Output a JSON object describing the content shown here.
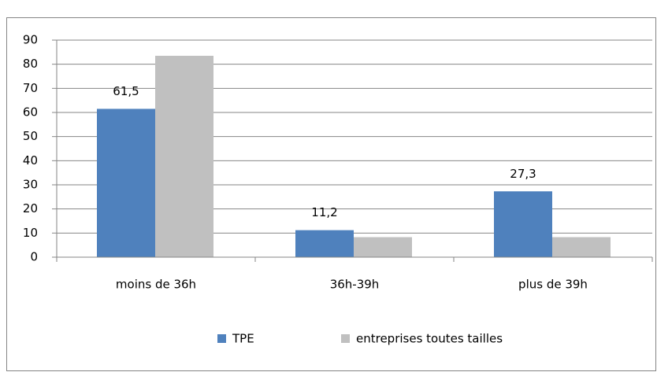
{
  "chart_data": {
    "type": "bar",
    "categories": [
      "moins de 36h",
      "36h-39h",
      "plus de 39h"
    ],
    "series": [
      {
        "name": "TPE",
        "color": "#4f81bd",
        "values": [
          61.5,
          11.2,
          27.3
        ],
        "value_labels": [
          "61,5",
          "11,2",
          "27,3"
        ]
      },
      {
        "name": "entreprises toutes tailles",
        "color": "#c0c0c0",
        "values": [
          83.5,
          8.3,
          8.3
        ]
      }
    ],
    "ylim": [
      0,
      90
    ],
    "yticks": [
      0,
      10,
      20,
      30,
      40,
      50,
      60,
      70,
      80,
      90
    ],
    "grid": true,
    "legend": "bottom"
  }
}
